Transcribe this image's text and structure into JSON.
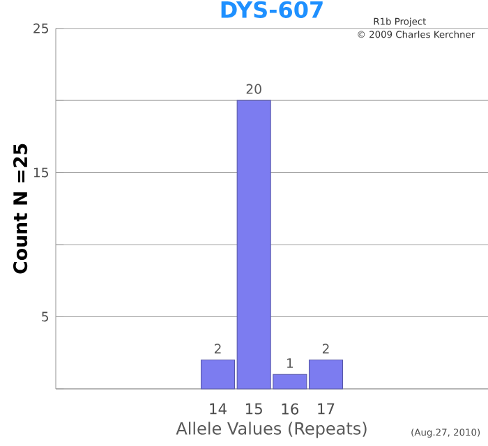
{
  "chart_data": {
    "type": "bar",
    "title": "DYS-607",
    "xlabel": "Allele Values (Repeats)",
    "ylabel": "Count N =25",
    "categories": [
      null,
      null,
      null,
      null,
      "14",
      "15",
      "16",
      "17",
      null,
      null,
      null,
      null
    ],
    "values": [
      null,
      null,
      null,
      null,
      2,
      20,
      1,
      2,
      null,
      null,
      null,
      null
    ],
    "color": "#7c7cf0",
    "ylim": [
      0,
      25
    ],
    "yticks": [
      {
        "value": 0,
        "label": null
      },
      5,
      {
        "value": 10,
        "label": null
      },
      15,
      {
        "value": 20,
        "label": null
      },
      25
    ],
    "grid": "y",
    "data_labels": true,
    "annotations": [
      "R1b Project",
      "© 2009 Charles Kerchner",
      "(Aug.27, 2010)"
    ]
  }
}
